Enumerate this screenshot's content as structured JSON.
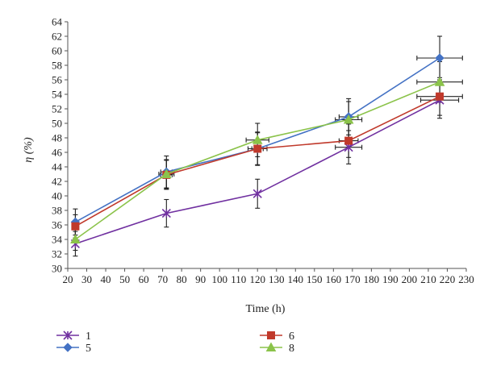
{
  "chart_data": {
    "type": "line",
    "title": "",
    "xlabel": "Time (h)",
    "ylabel": "η (%)",
    "xlim": [
      20,
      230
    ],
    "ylim": [
      30,
      64
    ],
    "xticks": [
      20,
      30,
      40,
      50,
      60,
      70,
      80,
      90,
      100,
      110,
      120,
      130,
      140,
      150,
      160,
      170,
      180,
      190,
      200,
      210,
      220,
      230
    ],
    "yticks": [
      30,
      32,
      34,
      36,
      38,
      40,
      42,
      44,
      46,
      48,
      50,
      52,
      54,
      56,
      58,
      60,
      62,
      64
    ],
    "grid": false,
    "legend_position": "bottom",
    "series": [
      {
        "name": "1",
        "color": "#7030a0",
        "marker": "star",
        "x": [
          24,
          72,
          120,
          168,
          216
        ],
        "y": [
          33.4,
          37.6,
          40.3,
          46.7,
          53.2
        ],
        "y_err": [
          1.7,
          1.9,
          2.0,
          2.3,
          2.5
        ],
        "x_err": [
          0,
          0,
          0,
          7,
          10
        ]
      },
      {
        "name": "5",
        "color": "#4472c4",
        "marker": "diamond",
        "x": [
          24,
          72,
          120,
          168,
          216
        ],
        "y": [
          36.4,
          43.3,
          46.5,
          50.9,
          59.0
        ],
        "y_err": [
          1.8,
          2.2,
          2.3,
          2.5,
          3.0
        ],
        "x_err": [
          0,
          3,
          3,
          5,
          12
        ]
      },
      {
        "name": "6",
        "color": "#c0392b",
        "marker": "square",
        "x": [
          24,
          72,
          120,
          168,
          216
        ],
        "y": [
          35.8,
          42.9,
          46.5,
          47.6,
          53.7
        ],
        "y_err": [
          1.6,
          2.0,
          2.2,
          2.3,
          2.6
        ],
        "x_err": [
          0,
          3,
          5,
          5,
          12
        ]
      },
      {
        "name": "8",
        "color": "#8bc34a",
        "marker": "triangle",
        "x": [
          24,
          72,
          120,
          168,
          216
        ],
        "y": [
          34.0,
          43.0,
          47.7,
          50.5,
          55.7
        ],
        "y_err": [
          1.5,
          2.0,
          2.3,
          2.5,
          2.8
        ],
        "x_err": [
          0,
          4,
          6,
          7,
          12
        ]
      }
    ]
  }
}
